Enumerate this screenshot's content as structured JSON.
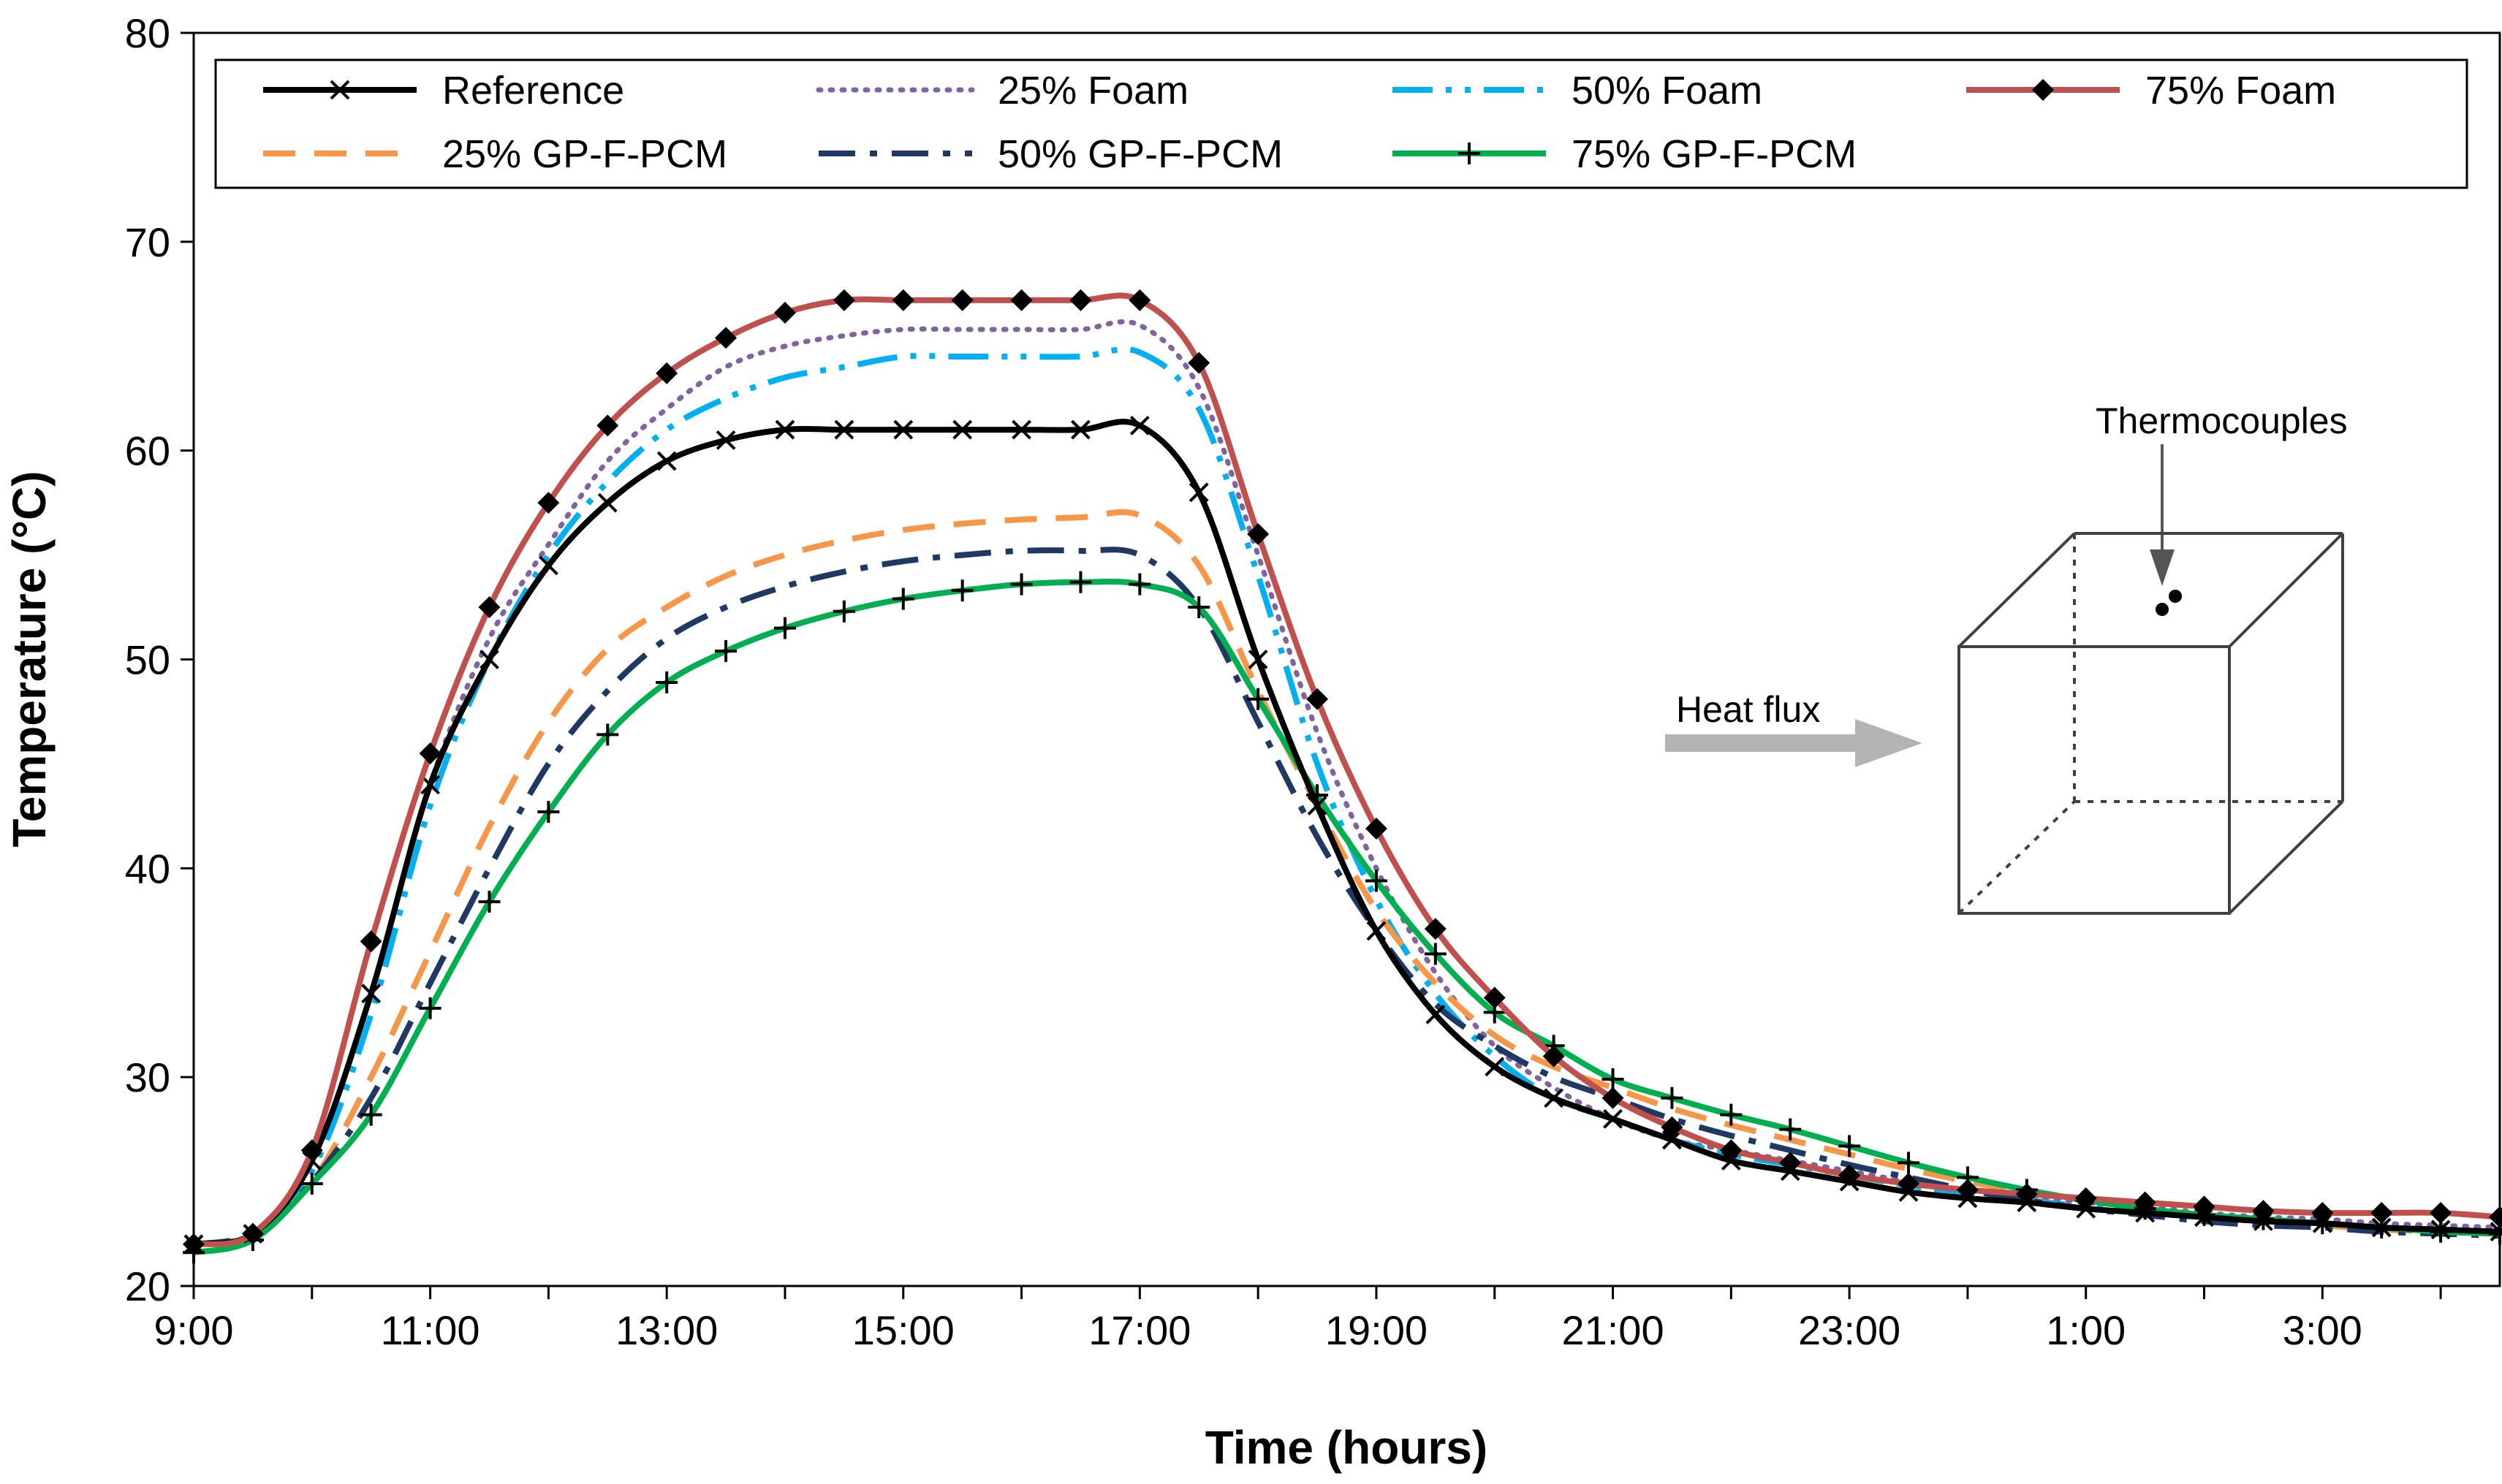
{
  "chart_data": {
    "type": "line",
    "title": "",
    "xlabel": "Time (hours)",
    "ylabel": "Temperature (°C)",
    "ylim": [
      20,
      80
    ],
    "yticks": [
      20,
      30,
      40,
      50,
      60,
      70,
      80
    ],
    "xlim": [
      0,
      19.5
    ],
    "xticks": [
      {
        "x": 0,
        "label": "9:00"
      },
      {
        "x": 2,
        "label": "11:00"
      },
      {
        "x": 4,
        "label": "13:00"
      },
      {
        "x": 6,
        "label": "15:00"
      },
      {
        "x": 8,
        "label": "17:00"
      },
      {
        "x": 10,
        "label": "19:00"
      },
      {
        "x": 12,
        "label": "21:00"
      },
      {
        "x": 14,
        "label": "23:00"
      },
      {
        "x": 16,
        "label": "1:00"
      },
      {
        "x": 18,
        "label": "3:00"
      }
    ],
    "grid": false,
    "legend_position": "top",
    "x": [
      0,
      0.5,
      1,
      1.5,
      2,
      2.5,
      3,
      3.5,
      4,
      4.5,
      5,
      5.5,
      6,
      6.5,
      7,
      7.5,
      8,
      8.5,
      9,
      9.5,
      10,
      10.5,
      11,
      11.5,
      12,
      12.5,
      13,
      13.5,
      14,
      14.5,
      15,
      15.5,
      16,
      16.5,
      17,
      17.5,
      18,
      18.5,
      19,
      19.5
    ],
    "series": [
      {
        "name": "Reference",
        "color": "#000000",
        "dash": "solid",
        "marker": "x",
        "values": [
          22,
          22.5,
          26,
          34,
          44,
          50,
          54.5,
          57.5,
          59.5,
          60.5,
          61,
          61,
          61,
          61,
          61,
          61,
          61.2,
          58,
          50,
          43,
          37,
          33,
          30.5,
          29,
          28,
          27,
          26,
          25.5,
          25,
          24.5,
          24.2,
          24,
          23.7,
          23.5,
          23.3,
          23.1,
          23,
          22.8,
          22.7,
          22.6
        ]
      },
      {
        "name": "25% Foam",
        "color": "#8064a2",
        "dash": "dot",
        "marker": "none",
        "values": [
          22,
          22.5,
          26,
          34,
          44,
          51,
          55.5,
          59.5,
          62,
          64,
          65,
          65.5,
          65.8,
          65.8,
          65.8,
          65.8,
          66,
          63,
          55,
          46.5,
          40,
          35,
          31.5,
          29.5,
          28,
          27,
          26.5,
          26,
          25.5,
          25,
          24.6,
          24.3,
          24,
          23.8,
          23.5,
          23.3,
          23.2,
          23,
          22.9,
          22.8
        ]
      },
      {
        "name": "50% Foam",
        "color": "#00b0f0",
        "dash": "dashdotdot",
        "marker": "none",
        "values": [
          22,
          22.5,
          25.5,
          33,
          43,
          50,
          55,
          58.5,
          61,
          62.5,
          63.5,
          64,
          64.5,
          64.5,
          64.5,
          64.5,
          64.7,
          62,
          54,
          45,
          38.5,
          34,
          31,
          29,
          28,
          27,
          26.3,
          25.8,
          25.3,
          24.8,
          24.4,
          24.1,
          23.8,
          23.5,
          23.3,
          23.1,
          23,
          22.8,
          22.7,
          22.6
        ]
      },
      {
        "name": "75% Foam",
        "color": "#c0504d",
        "dash": "solid",
        "marker": "diamond",
        "values": [
          22,
          22.5,
          26.5,
          36.5,
          45.5,
          52.5,
          57.5,
          61.2,
          63.7,
          65.4,
          66.6,
          67.2,
          67.2,
          67.2,
          67.2,
          67.2,
          67.2,
          64.2,
          56,
          48.1,
          41.9,
          37.1,
          33.8,
          31,
          29,
          27.6,
          26.5,
          25.9,
          25.3,
          24.9,
          24.6,
          24.4,
          24.2,
          24,
          23.8,
          23.6,
          23.5,
          23.5,
          23.5,
          23.3
        ]
      },
      {
        "name": "25% GP-F-PCM",
        "color": "#f79646",
        "dash": "dash",
        "marker": "none",
        "values": [
          22,
          22.5,
          25,
          30,
          36,
          42,
          47,
          50.5,
          52.5,
          54,
          55,
          55.7,
          56.2,
          56.5,
          56.7,
          56.8,
          56.9,
          54.5,
          48.5,
          43,
          38,
          34.5,
          32,
          30.5,
          29.5,
          28.5,
          27.7,
          27,
          26.3,
          25.6,
          25,
          24.5,
          24.1,
          23.7,
          23.4,
          23.1,
          22.9,
          22.7,
          22.6,
          22.5
        ]
      },
      {
        "name": "50% GP-F-PCM",
        "color": "#1f3864",
        "dash": "dashdot",
        "marker": "none",
        "values": [
          22,
          22.5,
          25,
          29,
          34.5,
          40,
          45,
          48.5,
          51,
          52.5,
          53.5,
          54.2,
          54.7,
          55,
          55.2,
          55.2,
          55,
          52.5,
          47,
          41.5,
          37,
          33.5,
          31.5,
          30,
          29,
          28,
          27.2,
          26.5,
          25.8,
          25.2,
          24.6,
          24.1,
          23.7,
          23.4,
          23.1,
          22.9,
          22.8,
          22.6,
          22.5,
          22.4
        ]
      },
      {
        "name": "75% GP-F-PCM",
        "color": "#00b050",
        "dash": "solid",
        "marker": "plus",
        "values": [
          21.6,
          22.2,
          24.9,
          28.2,
          33.3,
          38.4,
          42.7,
          46.4,
          48.9,
          50.4,
          51.5,
          52.3,
          52.9,
          53.3,
          53.6,
          53.7,
          53.6,
          52.5,
          48.1,
          43.5,
          39.4,
          35.9,
          33.1,
          31.5,
          29.9,
          29,
          28.2,
          27.5,
          26.7,
          25.9,
          25.2,
          24.6,
          24.1,
          23.7,
          23.4,
          23.2,
          23,
          22.8,
          22.6,
          22.5
        ]
      }
    ]
  },
  "inset": {
    "heat_flux_label": "Heat flux",
    "thermocouples_label": "Thermocouples"
  }
}
